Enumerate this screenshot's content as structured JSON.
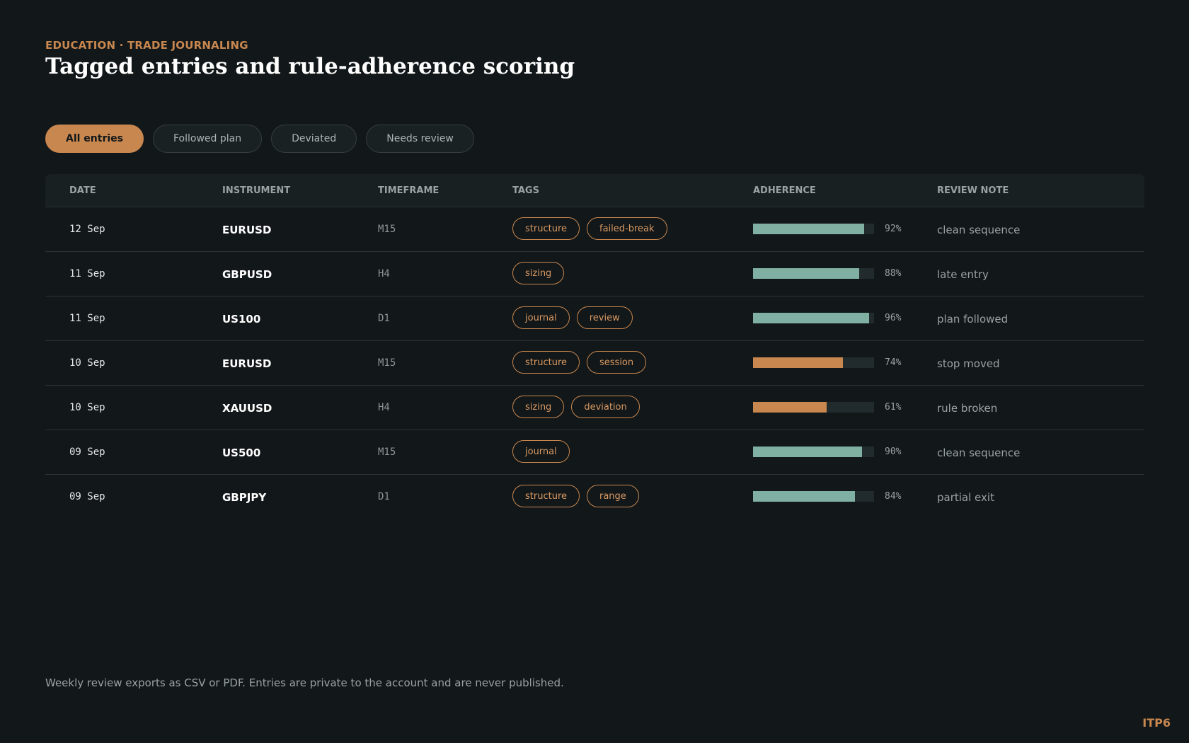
{
  "header": {
    "eyebrow": "EDUCATION · TRADE JOURNALING",
    "title": "Tagged entries and rule-adherence scoring"
  },
  "filters": [
    {
      "label": "All entries",
      "active": true
    },
    {
      "label": "Followed plan",
      "active": false
    },
    {
      "label": "Deviated",
      "active": false
    },
    {
      "label": "Needs review",
      "active": false
    }
  ],
  "table": {
    "columns": [
      "DATE",
      "INSTRUMENT",
      "TIMEFRAME",
      "TAGS",
      "ADHERENCE",
      "REVIEW NOTE"
    ],
    "rows": [
      {
        "date": "12 Sep",
        "instrument": "EURUSD",
        "timeframe": "M15",
        "tags": [
          "structure",
          "failed-break"
        ],
        "adherence": 92,
        "adherence_label": "92%",
        "note": "clean sequence"
      },
      {
        "date": "11 Sep",
        "instrument": "GBPUSD",
        "timeframe": "H4",
        "tags": [
          "sizing"
        ],
        "adherence": 88,
        "adherence_label": "88%",
        "note": "late entry"
      },
      {
        "date": "11 Sep",
        "instrument": "US100",
        "timeframe": "D1",
        "tags": [
          "journal",
          "review"
        ],
        "adherence": 96,
        "adherence_label": "96%",
        "note": "plan followed"
      },
      {
        "date": "10 Sep",
        "instrument": "EURUSD",
        "timeframe": "M15",
        "tags": [
          "structure",
          "session"
        ],
        "adherence": 74,
        "adherence_label": "74%",
        "note": "stop moved"
      },
      {
        "date": "10 Sep",
        "instrument": "XAUUSD",
        "timeframe": "H4",
        "tags": [
          "sizing",
          "deviation"
        ],
        "adherence": 61,
        "adherence_label": "61%",
        "note": "rule broken"
      },
      {
        "date": "09 Sep",
        "instrument": "US500",
        "timeframe": "M15",
        "tags": [
          "journal"
        ],
        "adherence": 90,
        "adherence_label": "90%",
        "note": "clean sequence"
      },
      {
        "date": "09 Sep",
        "instrument": "GBPJPY",
        "timeframe": "D1",
        "tags": [
          "structure",
          "range"
        ],
        "adherence": 84,
        "adherence_label": "84%",
        "note": "partial exit"
      }
    ]
  },
  "footer": {
    "text": "Weekly review exports as CSV or PDF. Entries are private to the account and are never published.",
    "brand": "ITP6"
  },
  "colors": {
    "accent": "#c8874f",
    "bar_high": "#7fb0a2",
    "bar_low": "#c8874f",
    "background": "#121719"
  }
}
